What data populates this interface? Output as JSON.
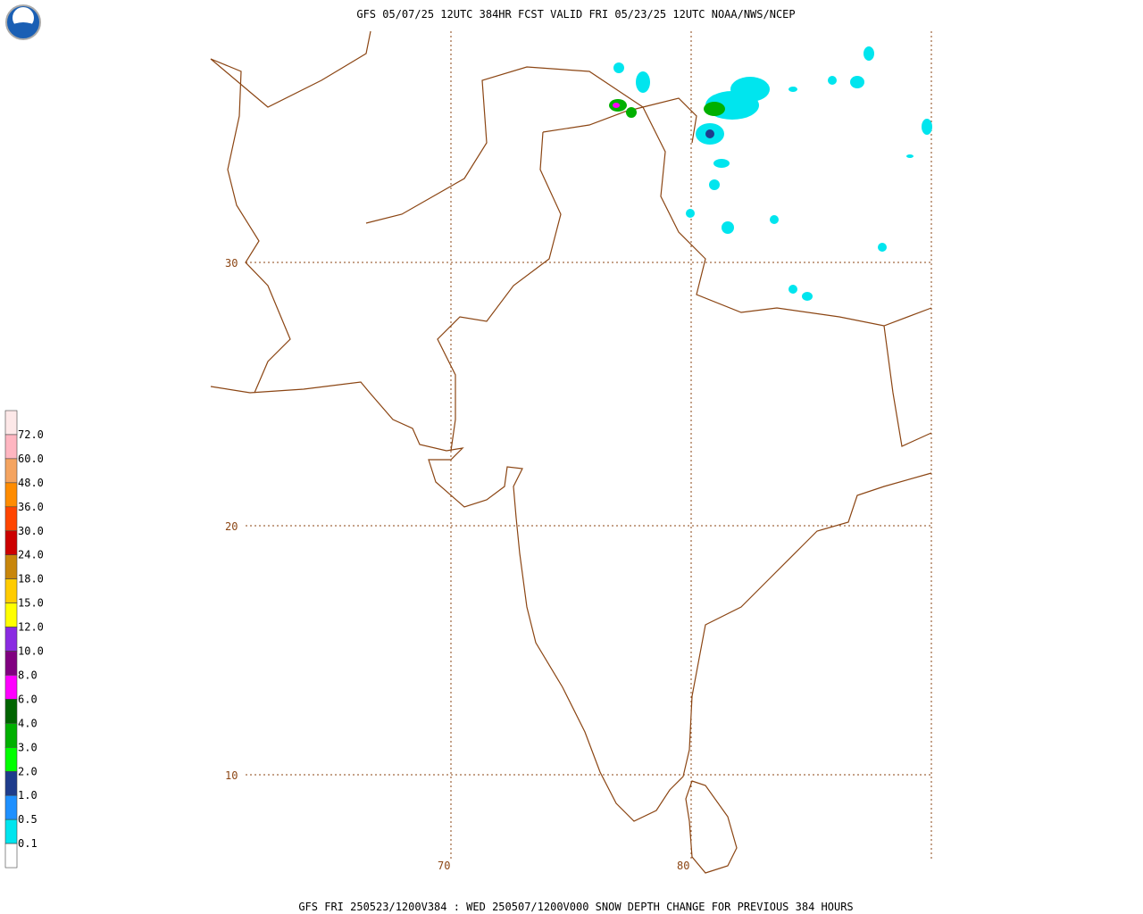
{
  "header": {
    "title": "GFS 05/07/25 12UTC 384HR FCST VALID FRI 05/23/25 12UTC NOAA/NWS/NCEP"
  },
  "map": {
    "latitude_labels": [
      "30",
      "20",
      "10"
    ],
    "longitude_labels": [
      "70",
      "80"
    ]
  },
  "legend": {
    "labels": [
      "72.0",
      "60.0",
      "48.0",
      "36.0",
      "30.0",
      "24.0",
      "18.0",
      "15.0",
      "12.0",
      "10.0",
      "8.0",
      "6.0",
      "4.0",
      "3.0",
      "2.0",
      "1.0",
      "0.5",
      "0.1"
    ]
  },
  "footer": {
    "text": "GFS FRI 250523/1200V384 : WED 250507/1200V000 SNOW DEPTH CHANGE FOR PREVIOUS 384 HOURS"
  }
}
